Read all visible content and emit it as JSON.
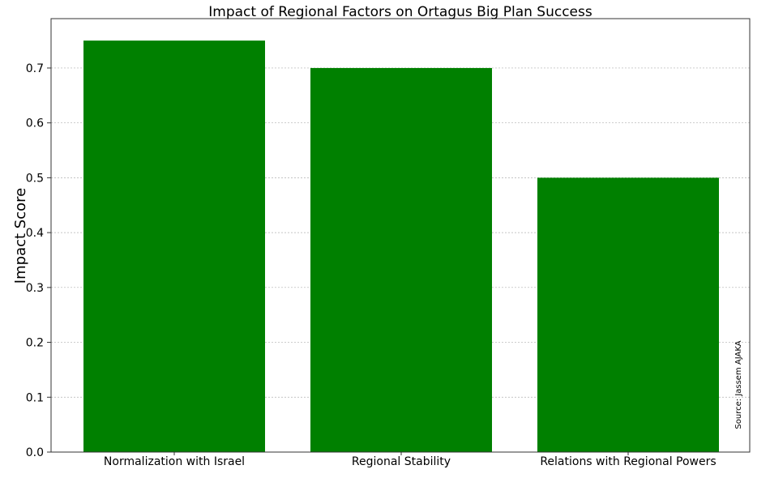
{
  "chart_data": {
    "type": "bar",
    "title": "Impact of Regional Factors on Ortagus Big Plan Success",
    "xlabel": "",
    "ylabel": "Impact Score",
    "categories": [
      "Normalization with Israel",
      "Regional Stability",
      "Relations with Regional Powers"
    ],
    "values": [
      0.75,
      0.7,
      0.5
    ],
    "ylim": [
      0,
      0.79
    ],
    "yticks": [
      "0.0",
      "0.1",
      "0.2",
      "0.3",
      "0.4",
      "0.5",
      "0.6",
      "0.7"
    ],
    "grid": true,
    "bar_color": "#008000",
    "grid_color": "#b0b0b0",
    "annotation": "Source: Jassem AJAKA"
  }
}
